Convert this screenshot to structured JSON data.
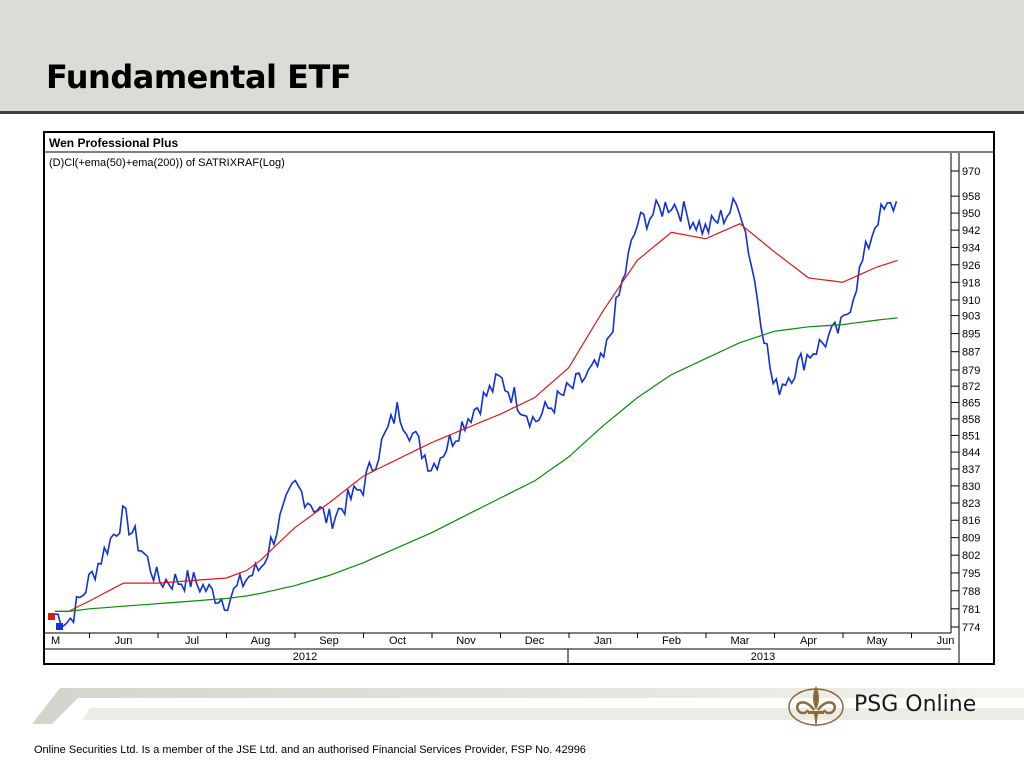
{
  "slide": {
    "title": "Fundamental ETF",
    "disclaimer": "Online Securities Ltd. Is a member of the JSE Ltd. and an authorised Financial Services Provider, FSP No. 42996",
    "brand": {
      "name": "PSG Online",
      "color": "#8a6a3a"
    }
  },
  "colors": {
    "price": "#1030d8",
    "ema50": "#e01818",
    "ema200": "#0a8a0a",
    "header_band": "#dcdcd7"
  },
  "chart_data": {
    "type": "line",
    "app_title": "Wen Professional Plus",
    "subtitle": "(D)Cl(+ema(50)+ema(200)) of SATRIXRAF(Log)",
    "y_scale": "log",
    "ylim": [
      774,
      970
    ],
    "y_ticks": [
      970,
      958,
      950,
      942,
      934,
      926,
      918,
      910,
      903,
      895,
      887,
      879,
      872,
      865,
      858,
      851,
      844,
      837,
      830,
      823,
      816,
      809,
      802,
      795,
      788,
      781,
      774
    ],
    "x_months": [
      "M",
      "Jun",
      "Jul",
      "Aug",
      "Sep",
      "Oct",
      "Nov",
      "Dec",
      "Jan",
      "Feb",
      "Mar",
      "Apr",
      "May",
      "Jun"
    ],
    "x_years": [
      "2012",
      "2013"
    ],
    "x": [
      0,
      0.2,
      0.5,
      1,
      1.5,
      2,
      2.5,
      2.8,
      3,
      3.5,
      4,
      4.5,
      5,
      5.5,
      6,
      6.5,
      7,
      7.5,
      8,
      8.5,
      9,
      9.5,
      10,
      10.5,
      11,
      11.5,
      12,
      12.3
    ],
    "series": [
      {
        "values": [
          779,
          776,
          792,
          818,
          792,
          792,
          784,
          793,
          797,
          830,
          816,
          830,
          862,
          838,
          858,
          875,
          857,
          870,
          882,
          945,
          955,
          942,
          955,
          870,
          886,
          898,
          948,
          955
        ]
      },
      {
        "values": [
          780,
          780,
          784,
          791,
          791,
          792,
          793,
          796,
          800,
          813,
          823,
          834,
          841,
          848,
          854,
          860,
          867,
          880,
          905,
          928,
          941,
          938,
          945,
          932,
          920,
          918,
          925,
          928
        ]
      },
      {
        "values": [
          780,
          780,
          781,
          782,
          783,
          784,
          785,
          786,
          787,
          790,
          794,
          799,
          805,
          811,
          818,
          825,
          832,
          842,
          855,
          867,
          877,
          884,
          891,
          896,
          898,
          899,
          901,
          902
        ]
      }
    ],
    "markers": [
      {
        "type": "red-square",
        "at": "start"
      },
      {
        "type": "blue-square",
        "at": "start"
      }
    ]
  }
}
